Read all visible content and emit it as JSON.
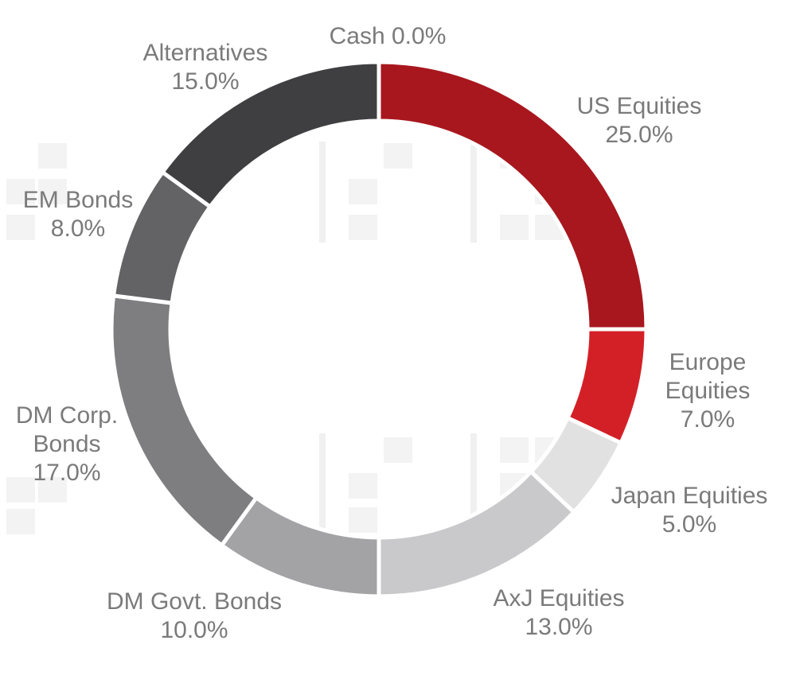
{
  "chart_data": {
    "type": "pie",
    "subtype": "donut",
    "start": "12 o'clock, clockwise",
    "slices": [
      {
        "label_lines": [
          "US Equities"
        ],
        "value_label": "25.0%",
        "value": 25.0,
        "color": "#a8171e"
      },
      {
        "label_lines": [
          "Europe",
          "Equities"
        ],
        "value_label": "7.0%",
        "value": 7.0,
        "color": "#d32027"
      },
      {
        "label_lines": [
          "Japan Equities"
        ],
        "value_label": "5.0%",
        "value": 5.0,
        "color": "#e1e1e2"
      },
      {
        "label_lines": [
          "AxJ Equities"
        ],
        "value_label": "13.0%",
        "value": 13.0,
        "color": "#c9c9cb"
      },
      {
        "label_lines": [
          "DM Govt. Bonds"
        ],
        "value_label": "10.0%",
        "value": 10.0,
        "color": "#a3a3a6"
      },
      {
        "label_lines": [
          "DM Corp.",
          "Bonds"
        ],
        "value_label": "17.0%",
        "value": 17.0,
        "color": "#7e7e80"
      },
      {
        "label_lines": [
          "EM Bonds"
        ],
        "value_label": "8.0%",
        "value": 8.0,
        "color": "#636365"
      },
      {
        "label_lines": [
          "Alternatives"
        ],
        "value_label": "15.0%",
        "value": 15.0,
        "color": "#3f3f41"
      },
      {
        "label_lines": [
          "Cash"
        ],
        "value_label": "0.0%",
        "value": 0.0,
        "color": "#2a2a2a",
        "inline": true
      }
    ]
  }
}
